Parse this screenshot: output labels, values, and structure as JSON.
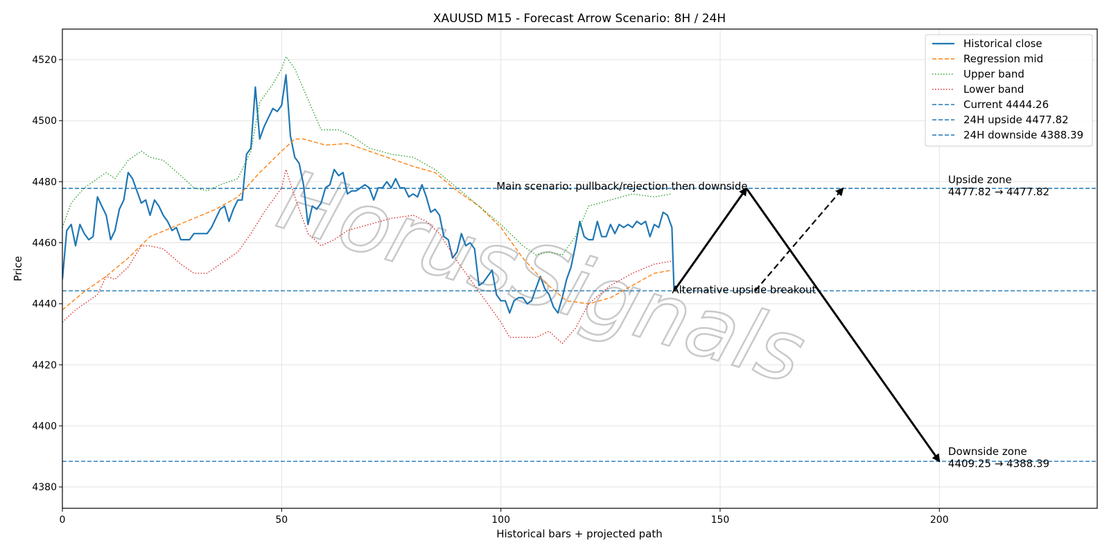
{
  "watermark": "HorusSignals",
  "chart_data": {
    "type": "line",
    "title": "XAUUSD M15 - Forecast Arrow Scenario: 8H / 24H",
    "xlabel": "Historical bars + projected path",
    "ylabel": "Price",
    "xlim": [
      0,
      236
    ],
    "ylim": [
      4373,
      4530
    ],
    "grid": true,
    "legend_position": "top-right",
    "x_ticks": [
      0,
      50,
      100,
      150,
      200
    ],
    "y_ticks": [
      4380,
      4400,
      4420,
      4440,
      4460,
      4480,
      4500,
      4520
    ],
    "series": [
      {
        "name": "Historical close",
        "color": "#1f77b4",
        "style": "solid",
        "points": [
          [
            0,
            4448
          ],
          [
            1,
            4464
          ],
          [
            2,
            4466
          ],
          [
            3,
            4459
          ],
          [
            4,
            4466
          ],
          [
            5,
            4463
          ],
          [
            6,
            4461
          ],
          [
            7,
            4462
          ],
          [
            8,
            4475
          ],
          [
            9,
            4472
          ],
          [
            10,
            4469
          ],
          [
            11,
            4461
          ],
          [
            12,
            4464
          ],
          [
            13,
            4471
          ],
          [
            14,
            4474
          ],
          [
            15,
            4483
          ],
          [
            16,
            4481
          ],
          [
            17,
            4477
          ],
          [
            18,
            4473
          ],
          [
            19,
            4474
          ],
          [
            20,
            4469
          ],
          [
            21,
            4474
          ],
          [
            22,
            4472
          ],
          [
            23,
            4469
          ],
          [
            24,
            4467
          ],
          [
            25,
            4464
          ],
          [
            26,
            4465
          ],
          [
            27,
            4461
          ],
          [
            28,
            4461
          ],
          [
            29,
            4461
          ],
          [
            30,
            4463
          ],
          [
            31,
            4463
          ],
          [
            32,
            4463
          ],
          [
            33,
            4463
          ],
          [
            34,
            4465
          ],
          [
            35,
            4468
          ],
          [
            36,
            4471
          ],
          [
            37,
            4472
          ],
          [
            38,
            4467
          ],
          [
            39,
            4471
          ],
          [
            40,
            4474
          ],
          [
            41,
            4474
          ],
          [
            42,
            4489
          ],
          [
            43,
            4491
          ],
          [
            44,
            4511
          ],
          [
            45,
            4494
          ],
          [
            46,
            4498
          ],
          [
            47,
            4501
          ],
          [
            48,
            4504
          ],
          [
            49,
            4503
          ],
          [
            50,
            4505
          ],
          [
            51,
            4515
          ],
          [
            52,
            4495
          ],
          [
            53,
            4488
          ],
          [
            54,
            4486
          ],
          [
            55,
            4479
          ],
          [
            56,
            4466
          ],
          [
            57,
            4472
          ],
          [
            58,
            4471
          ],
          [
            59,
            4473
          ],
          [
            60,
            4478
          ],
          [
            61,
            4479
          ],
          [
            62,
            4484
          ],
          [
            63,
            4482
          ],
          [
            64,
            4483
          ],
          [
            65,
            4476
          ],
          [
            66,
            4477
          ],
          [
            67,
            4477
          ],
          [
            68,
            4478
          ],
          [
            69,
            4479
          ],
          [
            70,
            4478
          ],
          [
            71,
            4474
          ],
          [
            72,
            4478
          ],
          [
            73,
            4478
          ],
          [
            74,
            4480
          ],
          [
            75,
            4478
          ],
          [
            76,
            4481
          ],
          [
            77,
            4478
          ],
          [
            78,
            4478
          ],
          [
            79,
            4475
          ],
          [
            80,
            4476
          ],
          [
            81,
            4475
          ],
          [
            82,
            4479
          ],
          [
            83,
            4475
          ],
          [
            84,
            4470
          ],
          [
            85,
            4471
          ],
          [
            86,
            4469
          ],
          [
            87,
            4462
          ],
          [
            88,
            4461
          ],
          [
            89,
            4455
          ],
          [
            90,
            4457
          ],
          [
            91,
            4463
          ],
          [
            92,
            4459
          ],
          [
            93,
            4460
          ],
          [
            94,
            4458
          ],
          [
            95,
            4446
          ],
          [
            96,
            4447
          ],
          [
            97,
            4449
          ],
          [
            98,
            4451
          ],
          [
            99,
            4443
          ],
          [
            100,
            4441
          ],
          [
            101,
            4441
          ],
          [
            102,
            4437
          ],
          [
            103,
            4441
          ],
          [
            104,
            4442
          ],
          [
            105,
            4442
          ],
          [
            106,
            4440
          ],
          [
            107,
            4441
          ],
          [
            108,
            4445
          ],
          [
            109,
            4449
          ],
          [
            110,
            4445
          ],
          [
            111,
            4443
          ],
          [
            112,
            4439
          ],
          [
            113,
            4437
          ],
          [
            114,
            4442
          ],
          [
            115,
            4448
          ],
          [
            116,
            4452
          ],
          [
            117,
            4459
          ],
          [
            118,
            4467
          ],
          [
            119,
            4462
          ],
          [
            120,
            4461
          ],
          [
            121,
            4461
          ],
          [
            122,
            4467
          ],
          [
            123,
            4462
          ],
          [
            124,
            4462
          ],
          [
            125,
            4466
          ],
          [
            126,
            4463
          ],
          [
            127,
            4466
          ],
          [
            128,
            4465
          ],
          [
            129,
            4466
          ],
          [
            130,
            4465
          ],
          [
            131,
            4467
          ],
          [
            132,
            4466
          ],
          [
            133,
            4467
          ],
          [
            134,
            4462
          ],
          [
            135,
            4466
          ],
          [
            136,
            4465
          ],
          [
            137,
            4470
          ],
          [
            138,
            4469
          ],
          [
            139,
            4465
          ],
          [
            139.5,
            4444.26
          ]
        ]
      },
      {
        "name": "Regression mid",
        "color": "#ff7f0e",
        "style": "dashed",
        "points": [
          [
            0,
            4438
          ],
          [
            5,
            4444
          ],
          [
            10,
            4449
          ],
          [
            15,
            4455
          ],
          [
            20,
            4462
          ],
          [
            25,
            4465
          ],
          [
            30,
            4468
          ],
          [
            35,
            4471
          ],
          [
            40,
            4475
          ],
          [
            45,
            4483
          ],
          [
            50,
            4490
          ],
          [
            53,
            4494
          ],
          [
            55,
            4494
          ],
          [
            60,
            4492
          ],
          [
            65,
            4492.5
          ],
          [
            70,
            4490
          ],
          [
            75,
            4487.5
          ],
          [
            80,
            4485
          ],
          [
            85,
            4483
          ],
          [
            90,
            4477
          ],
          [
            95,
            4472
          ],
          [
            100,
            4465
          ],
          [
            105,
            4455
          ],
          [
            110,
            4447
          ],
          [
            115,
            4441
          ],
          [
            120,
            4440
          ],
          [
            125,
            4442
          ],
          [
            130,
            4446
          ],
          [
            135,
            4450
          ],
          [
            139,
            4451
          ]
        ]
      },
      {
        "name": "Upper band",
        "color": "#2ca02c",
        "style": "dotted",
        "points": [
          [
            0,
            4465
          ],
          [
            2,
            4473
          ],
          [
            5,
            4478
          ],
          [
            8,
            4481
          ],
          [
            10,
            4483
          ],
          [
            12,
            4481
          ],
          [
            15,
            4487
          ],
          [
            18,
            4490
          ],
          [
            20,
            4488
          ],
          [
            23,
            4487
          ],
          [
            27,
            4482
          ],
          [
            30,
            4478
          ],
          [
            33,
            4477
          ],
          [
            36,
            4479
          ],
          [
            40,
            4481
          ],
          [
            43,
            4490
          ],
          [
            45,
            4506
          ],
          [
            48,
            4512
          ],
          [
            50,
            4517
          ],
          [
            51,
            4521
          ],
          [
            53,
            4517
          ],
          [
            56,
            4507
          ],
          [
            59,
            4497
          ],
          [
            63,
            4497
          ],
          [
            66,
            4495
          ],
          [
            70,
            4491
          ],
          [
            75,
            4489
          ],
          [
            80,
            4488
          ],
          [
            85,
            4484
          ],
          [
            90,
            4478
          ],
          [
            95,
            4472
          ],
          [
            100,
            4466
          ],
          [
            105,
            4459
          ],
          [
            108,
            4456
          ],
          [
            111,
            4457
          ],
          [
            114,
            4456
          ],
          [
            117,
            4462
          ],
          [
            120,
            4472
          ],
          [
            125,
            4474
          ],
          [
            130,
            4476
          ],
          [
            135,
            4475
          ],
          [
            139,
            4476
          ]
        ]
      },
      {
        "name": "Lower band",
        "color": "#d62728",
        "style": "dotted",
        "points": [
          [
            0,
            4434
          ],
          [
            3,
            4438
          ],
          [
            5,
            4440
          ],
          [
            8,
            4443
          ],
          [
            10,
            4449
          ],
          [
            12,
            4448
          ],
          [
            15,
            4452
          ],
          [
            18,
            4459
          ],
          [
            20,
            4459
          ],
          [
            23,
            4458
          ],
          [
            27,
            4453
          ],
          [
            30,
            4450
          ],
          [
            33,
            4450
          ],
          [
            36,
            4453
          ],
          [
            40,
            4457
          ],
          [
            43,
            4463
          ],
          [
            46,
            4470
          ],
          [
            50,
            4478
          ],
          [
            51,
            4484
          ],
          [
            53,
            4475
          ],
          [
            56,
            4463
          ],
          [
            59,
            4459
          ],
          [
            62,
            4461
          ],
          [
            65,
            4464
          ],
          [
            70,
            4466
          ],
          [
            75,
            4468
          ],
          [
            80,
            4469
          ],
          [
            83,
            4467
          ],
          [
            86,
            4463
          ],
          [
            90,
            4454
          ],
          [
            95,
            4444
          ],
          [
            100,
            4434
          ],
          [
            102,
            4429
          ],
          [
            105,
            4429
          ],
          [
            108,
            4429
          ],
          [
            111,
            4431
          ],
          [
            114,
            4427
          ],
          [
            117,
            4432
          ],
          [
            120,
            4440
          ],
          [
            125,
            4446
          ],
          [
            130,
            4450
          ],
          [
            135,
            4453
          ],
          [
            139,
            4454
          ]
        ]
      }
    ],
    "reference_lines": [
      {
        "name": "Current 4444.26",
        "value": 4444.26,
        "color": "#1f77b4",
        "style": "dashed"
      },
      {
        "name": "24H upside 4477.82",
        "value": 4477.82,
        "color": "#1f77b4",
        "style": "dashed"
      },
      {
        "name": "24H downside 4388.39",
        "value": 4388.39,
        "color": "#1f77b4",
        "style": "dashed"
      }
    ],
    "arrows": [
      {
        "name": "main-up",
        "from": [
          139.5,
          4444.26
        ],
        "to": [
          156,
          4477.82
        ],
        "style": "solid"
      },
      {
        "name": "main-down",
        "from": [
          156,
          4477.82
        ],
        "to": [
          200,
          4388.39
        ],
        "style": "solid"
      },
      {
        "name": "alt-up",
        "from": [
          158,
          4444.26
        ],
        "to": [
          178,
          4477.82
        ],
        "style": "dashed"
      }
    ],
    "annotations": [
      {
        "text": "Main scenario: pullback/rejection then downside",
        "x": 99,
        "y": 4477.4
      },
      {
        "text": "Alternative upside breakout",
        "x": 139,
        "y": 4443.5
      },
      {
        "text": "Upside zone",
        "x": 202,
        "y": 4479.5
      },
      {
        "text": "4477.82 → 4477.82",
        "x": 202,
        "y": 4475.5
      },
      {
        "text": "Downside zone",
        "x": 202,
        "y": 4390.5
      },
      {
        "text": "4409.25 → 4388.39",
        "x": 202,
        "y": 4386.5
      }
    ]
  }
}
